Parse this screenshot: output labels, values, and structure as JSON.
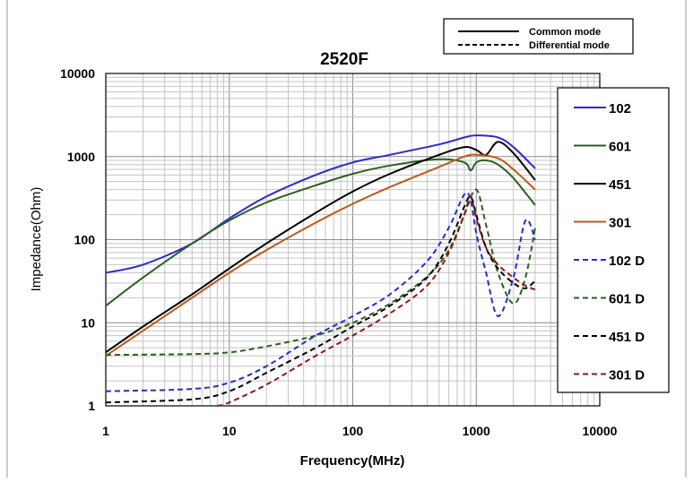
{
  "chart_data": {
    "type": "line",
    "title": "2520F",
    "xlabel": "Frequency(MHz)",
    "ylabel": "Impedance(Ohm)",
    "xscale": "log",
    "yscale": "log",
    "xlim": [
      1,
      10000
    ],
    "ylim": [
      1,
      10000
    ],
    "xticks": [
      "1",
      "10",
      "100",
      "1000",
      "10000"
    ],
    "yticks": [
      "1",
      "10",
      "100",
      "1000",
      "10000"
    ],
    "grid": true,
    "mode_legend": [
      {
        "label": "Common mode",
        "dash": "solid"
      },
      {
        "label": "Differential mode",
        "dash": "dashed"
      }
    ],
    "series": [
      {
        "name": "102",
        "color": "#2a2ad0",
        "dash": "solid",
        "x": [
          1,
          2,
          5,
          10,
          20,
          50,
          100,
          200,
          500,
          800,
          1000,
          1500,
          2000,
          3000
        ],
        "y": [
          40,
          50,
          90,
          180,
          330,
          600,
          850,
          1050,
          1400,
          1700,
          1800,
          1700,
          1300,
          720
        ]
      },
      {
        "name": "601",
        "color": "#2a6020",
        "dash": "solid",
        "x": [
          1,
          2,
          5,
          10,
          20,
          50,
          100,
          200,
          500,
          800,
          900,
          1000,
          1200,
          1500,
          2000,
          3000
        ],
        "y": [
          16,
          35,
          90,
          170,
          280,
          450,
          620,
          780,
          930,
          850,
          680,
          850,
          900,
          800,
          550,
          260
        ]
      },
      {
        "name": "451",
        "color": "#000000",
        "dash": "solid",
        "x": [
          1,
          2,
          5,
          10,
          20,
          50,
          100,
          200,
          500,
          800,
          1000,
          1200,
          1500,
          2000,
          3000
        ],
        "y": [
          4.4,
          9,
          22,
          45,
          90,
          210,
          380,
          620,
          1050,
          1300,
          1200,
          1050,
          1500,
          1100,
          520
        ]
      },
      {
        "name": "301",
        "color": "#c05818",
        "dash": "solid",
        "x": [
          1,
          2,
          5,
          10,
          20,
          50,
          100,
          200,
          500,
          800,
          1000,
          1500,
          2000,
          3000
        ],
        "y": [
          4,
          8,
          20,
          40,
          75,
          160,
          270,
          430,
          750,
          1000,
          1050,
          950,
          700,
          400
        ]
      },
      {
        "name": "102 D",
        "color": "#2a2ad0",
        "dash": "dashed",
        "x": [
          1,
          5,
          10,
          20,
          50,
          100,
          200,
          400,
          600,
          800,
          900,
          1000,
          1200,
          1500,
          2000,
          2500,
          3000
        ],
        "y": [
          1.5,
          1.6,
          1.9,
          3,
          7,
          12,
          22,
          55,
          140,
          350,
          300,
          120,
          40,
          12,
          35,
          170,
          100
        ]
      },
      {
        "name": "601 D",
        "color": "#2a6020",
        "dash": "dashed",
        "x": [
          1,
          5,
          10,
          20,
          50,
          100,
          200,
          400,
          600,
          800,
          1000,
          1200,
          1500,
          2000,
          2500,
          3000
        ],
        "y": [
          4.1,
          4.2,
          4.4,
          5.2,
          7,
          10,
          17,
          36,
          75,
          200,
          400,
          150,
          40,
          17,
          35,
          140
        ]
      },
      {
        "name": "451 D",
        "color": "#000000",
        "dash": "dashed",
        "x": [
          1,
          5,
          10,
          20,
          50,
          100,
          200,
          400,
          600,
          800,
          900,
          1000,
          1200,
          1500,
          2000,
          2500,
          3000
        ],
        "y": [
          1.1,
          1.2,
          1.5,
          2.5,
          5,
          9,
          16,
          35,
          90,
          250,
          330,
          200,
          80,
          45,
          30,
          26,
          32
        ]
      },
      {
        "name": "301 D",
        "color": "#8a1a1a",
        "dash": "dashed",
        "x": [
          8,
          10,
          20,
          50,
          100,
          200,
          400,
          600,
          800,
          900,
          1000,
          1200,
          1500,
          2000,
          2500,
          3000
        ],
        "y": [
          1,
          1.1,
          1.8,
          4,
          7,
          13,
          28,
          70,
          200,
          330,
          180,
          80,
          50,
          35,
          28,
          25
        ]
      }
    ]
  }
}
